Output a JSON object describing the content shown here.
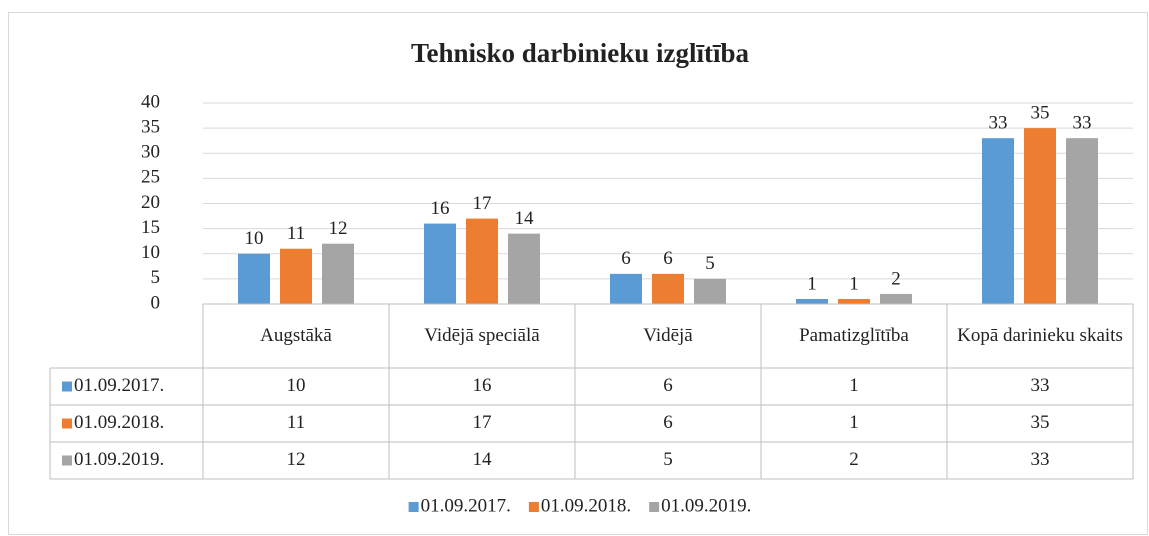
{
  "chart_data": {
    "type": "bar",
    "title": "Tehnisko darbinieku izglītība",
    "categories": [
      "Augstākā",
      "Vidējā speciālā",
      "Vidējā",
      "Pamatizglītība",
      "Kopā darinieku skaits"
    ],
    "series": [
      {
        "name": "01.09.2017.",
        "color": "#5b9bd5",
        "values": [
          10,
          16,
          6,
          1,
          33
        ]
      },
      {
        "name": "01.09.2018.",
        "color": "#ed7d31",
        "values": [
          11,
          17,
          6,
          1,
          35
        ]
      },
      {
        "name": "01.09.2019.",
        "color": "#a5a5a5",
        "values": [
          12,
          14,
          5,
          2,
          33
        ]
      }
    ],
    "ylim": [
      0,
      40
    ],
    "yticks": [
      0,
      5,
      10,
      15,
      20,
      25,
      30,
      35,
      40
    ],
    "grid": true,
    "legend": "bottom",
    "data_table": true
  }
}
